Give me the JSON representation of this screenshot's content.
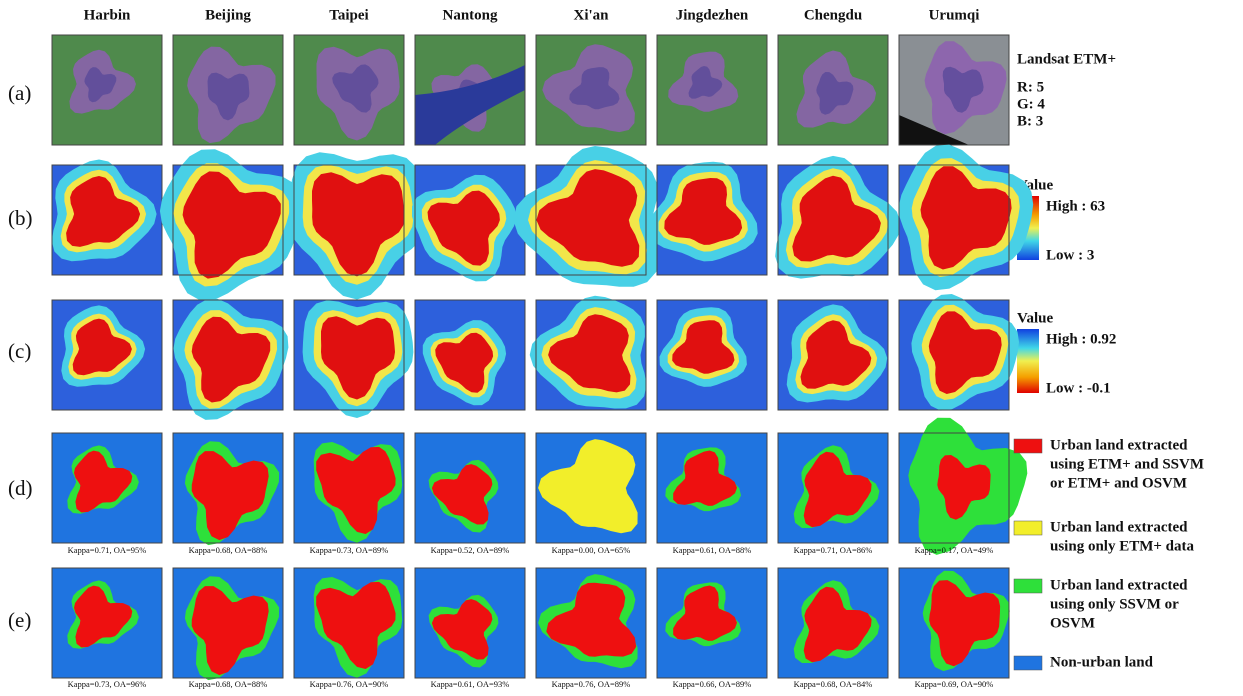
{
  "columns": [
    "Harbin",
    "Beijing",
    "Taipei",
    "Nantong",
    "Xi'an",
    "Jingdezhen",
    "Chengdu",
    "Urumqi"
  ],
  "rows": [
    "(a)",
    "(b)",
    "(c)",
    "(d)",
    "(e)"
  ],
  "legend_a": {
    "title": "Landsat ETM+",
    "bands": [
      "R: 5",
      "G: 4",
      "B: 3"
    ]
  },
  "legend_b": {
    "title": "Value",
    "high": "High : 63",
    "low": "Low : 3"
  },
  "legend_c": {
    "title": "Value",
    "high": "High : 0.92",
    "low": "Low : -0.1"
  },
  "legend_d": [
    {
      "lines": [
        "Urban land extracted",
        "using ETM+ and SSVM",
        "or ETM+ and OSVM"
      ]
    },
    {
      "lines": [
        "Urban land extracted",
        "using only ETM+ data"
      ]
    },
    {
      "lines": [
        "Urban land extracted",
        "using only SSVM or",
        "OSVM"
      ]
    },
    {
      "lines": [
        "Non-urban land"
      ]
    }
  ],
  "captions_d": [
    "Kappa=0.71, OA=95%",
    "Kappa=0.68, OA=88%",
    "Kappa=0.73, OA=89%",
    "Kappa=0.52, OA=89%",
    "Kappa=0.00, OA=65%",
    "Kappa=0.61, OA=88%",
    "Kappa=0.71, OA=86%",
    "Kappa=0.17, OA=49%"
  ],
  "captions_e": [
    "Kappa=0.73, OA=96%",
    "Kappa=0.68, OA=88%",
    "Kappa=0.76, OA=90%",
    "Kappa=0.61, OA=93%",
    "Kappa=0.76, OA=89%",
    "Kappa=0.66, OA=89%",
    "Kappa=0.68, OA=84%",
    "Kappa=0.69, OA=90%"
  ]
}
